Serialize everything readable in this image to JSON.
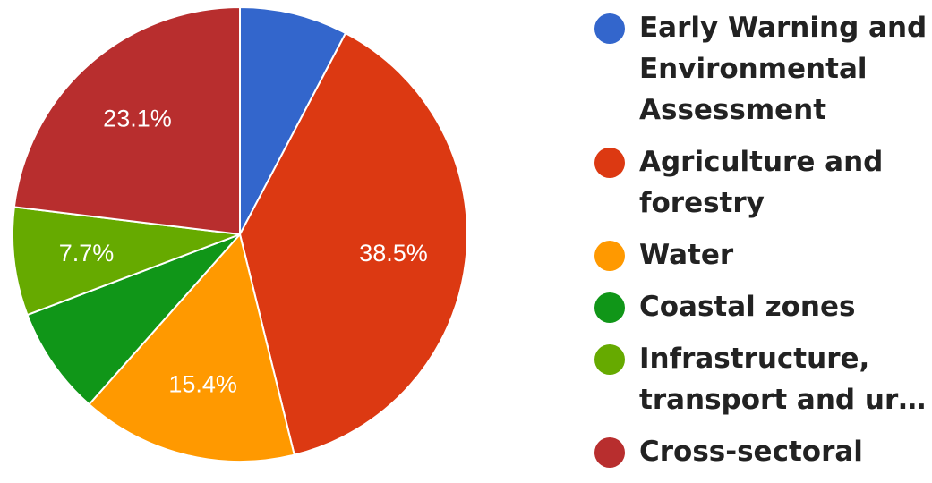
{
  "chart_data": {
    "type": "pie",
    "title": "",
    "legend_position": "right",
    "slices": [
      {
        "label": "Early Warning and Environmental Assessment",
        "legend_lines": [
          "Early Warning and",
          "Environmental",
          "Assessment"
        ],
        "value": 7.7,
        "data_label": "",
        "color": "#3366cc"
      },
      {
        "label": "Agriculture and forestry",
        "legend_lines": [
          "Agriculture and",
          "forestry"
        ],
        "value": 38.5,
        "data_label": "38.5%",
        "color": "#dc3912"
      },
      {
        "label": "Water",
        "legend_lines": [
          "Water"
        ],
        "value": 15.4,
        "data_label": "15.4%",
        "color": "#ff9900"
      },
      {
        "label": "Coastal zones",
        "legend_lines": [
          "Coastal zones"
        ],
        "value": 7.7,
        "data_label": "",
        "color": "#109618"
      },
      {
        "label": "Infrastructure, transport and ur…",
        "legend_lines": [
          "Infrastructure,",
          "transport and ur…"
        ],
        "value": 7.7,
        "data_label": "7.7%",
        "color": "#66aa00"
      },
      {
        "label": "Cross-sectoral",
        "legend_lines": [
          "Cross-sectoral"
        ],
        "value": 23.1,
        "data_label": "23.1%",
        "color": "#b82e2e"
      }
    ]
  }
}
